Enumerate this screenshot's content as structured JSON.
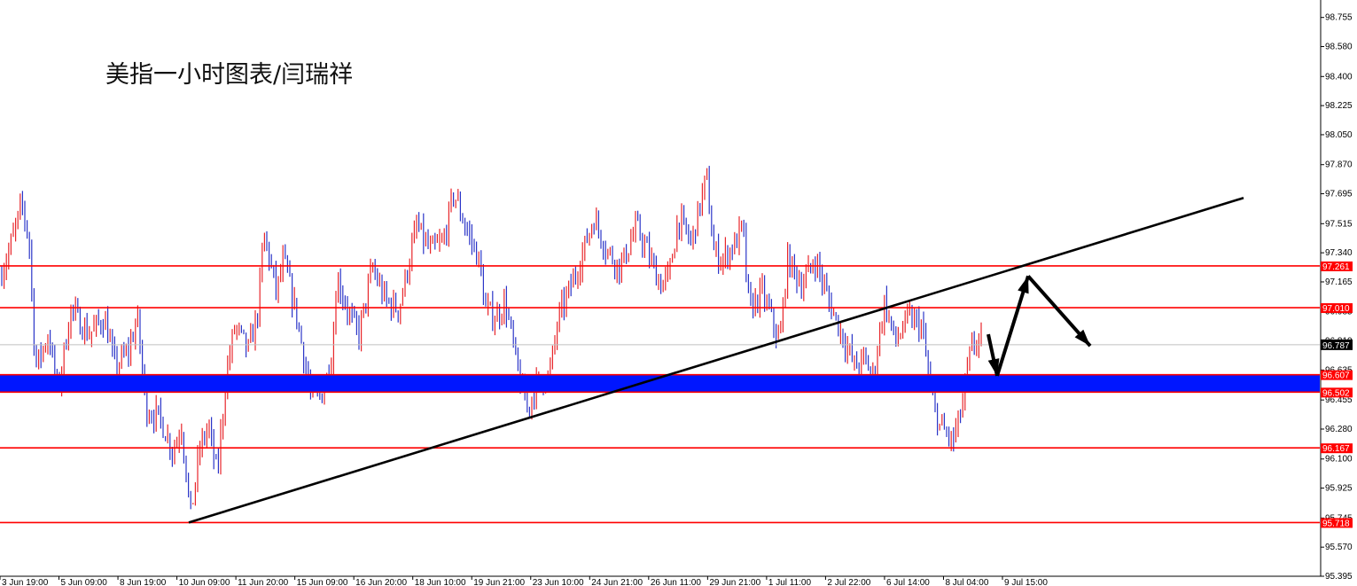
{
  "chart_data": {
    "type": "candlestick",
    "title": "美指一小时图表/闫瑞祥",
    "ylim": [
      95.395,
      98.86
    ],
    "y_ticks": [
      "98.755",
      "98.580",
      "98.400",
      "98.225",
      "98.050",
      "97.870",
      "97.695",
      "97.515",
      "97.340",
      "97.165",
      "96.985",
      "96.810",
      "96.635",
      "96.455",
      "96.280",
      "96.100",
      "95.925",
      "95.745",
      "95.570",
      "95.395"
    ],
    "x_labels": [
      "3 Jun 19:00",
      "5 Jun 09:00",
      "8 Jun 19:00",
      "10 Jun 09:00",
      "11 Jun 20:00",
      "15 Jun 09:00",
      "16 Jun 20:00",
      "18 Jun 10:00",
      "19 Jun 21:00",
      "23 Jun 10:00",
      "24 Jun 21:00",
      "26 Jun 11:00",
      "29 Jun 21:00",
      "1 Jul 11:00",
      "2 Jul 22:00",
      "6 Jul 14:00",
      "8 Jul 04:00",
      "9 Jul 15:00"
    ],
    "horizontal_levels": [
      {
        "value": 97.261,
        "label": "97.261"
      },
      {
        "value": 97.01,
        "label": "97.010"
      },
      {
        "value": 96.607,
        "label": "96.607"
      },
      {
        "value": 96.502,
        "label": "96.502"
      },
      {
        "value": 96.167,
        "label": "96.167"
      },
      {
        "value": 95.718,
        "label": "95.718"
      }
    ],
    "current_price": {
      "value": 96.787,
      "label": "96.787"
    },
    "zone": {
      "from": 96.502,
      "to": 96.607
    },
    "path": [
      [
        0,
        97.2
      ],
      [
        10,
        97.35
      ],
      [
        25,
        97.63
      ],
      [
        33,
        97.4
      ],
      [
        40,
        96.65
      ],
      [
        55,
        96.85
      ],
      [
        65,
        96.5
      ],
      [
        80,
        97.0
      ],
      [
        100,
        96.85
      ],
      [
        118,
        96.95
      ],
      [
        130,
        96.65
      ],
      [
        145,
        96.75
      ],
      [
        155,
        96.95
      ],
      [
        165,
        96.4
      ],
      [
        180,
        96.35
      ],
      [
        195,
        96.15
      ],
      [
        205,
        96.3
      ],
      [
        215,
        95.75
      ],
      [
        225,
        96.15
      ],
      [
        235,
        96.3
      ],
      [
        245,
        96.0
      ],
      [
        255,
        96.6
      ],
      [
        265,
        96.9
      ],
      [
        280,
        96.75
      ],
      [
        290,
        96.95
      ],
      [
        298,
        97.45
      ],
      [
        312,
        97.1
      ],
      [
        320,
        97.3
      ],
      [
        335,
        96.95
      ],
      [
        345,
        96.65
      ],
      [
        352,
        96.45
      ],
      [
        365,
        96.5
      ],
      [
        375,
        96.75
      ],
      [
        380,
        97.2
      ],
      [
        395,
        96.95
      ],
      [
        405,
        96.85
      ],
      [
        420,
        97.25
      ],
      [
        435,
        97.05
      ],
      [
        450,
        97.0
      ],
      [
        460,
        97.25
      ],
      [
        470,
        97.5
      ],
      [
        485,
        97.35
      ],
      [
        500,
        97.4
      ],
      [
        512,
        97.7
      ],
      [
        525,
        97.5
      ],
      [
        540,
        97.3
      ],
      [
        548,
        97.0
      ],
      [
        560,
        96.95
      ],
      [
        570,
        97.05
      ],
      [
        585,
        96.6
      ],
      [
        595,
        96.4
      ],
      [
        605,
        96.55
      ],
      [
        620,
        96.6
      ],
      [
        630,
        96.95
      ],
      [
        645,
        97.15
      ],
      [
        655,
        97.3
      ],
      [
        670,
        97.55
      ],
      [
        685,
        97.35
      ],
      [
        700,
        97.25
      ],
      [
        718,
        97.5
      ],
      [
        730,
        97.35
      ],
      [
        745,
        97.15
      ],
      [
        755,
        97.2
      ],
      [
        765,
        97.55
      ],
      [
        780,
        97.4
      ],
      [
        797,
        97.8
      ],
      [
        805,
        97.35
      ],
      [
        815,
        97.3
      ],
      [
        830,
        97.4
      ],
      [
        838,
        97.5
      ],
      [
        845,
        97.0
      ],
      [
        860,
        97.1
      ],
      [
        870,
        96.95
      ],
      [
        880,
        96.8
      ],
      [
        888,
        97.3
      ],
      [
        905,
        97.15
      ],
      [
        920,
        97.3
      ],
      [
        935,
        97.05
      ],
      [
        950,
        96.85
      ],
      [
        965,
        96.65
      ],
      [
        975,
        96.7
      ],
      [
        985,
        96.6
      ],
      [
        998,
        97.05
      ],
      [
        1010,
        96.8
      ],
      [
        1025,
        96.95
      ],
      [
        1040,
        96.9
      ],
      [
        1050,
        96.5
      ],
      [
        1060,
        96.3
      ],
      [
        1075,
        96.2
      ],
      [
        1085,
        96.4
      ],
      [
        1095,
        96.75
      ],
      [
        1108,
        96.85
      ]
    ],
    "trendline": [
      [
        213,
        95.718
      ],
      [
        1403,
        97.67
      ]
    ],
    "arrows": [
      [
        1115,
        96.85
      ],
      [
        1125,
        96.6
      ],
      [
        1160,
        97.2
      ],
      [
        1230,
        96.78
      ]
    ]
  }
}
